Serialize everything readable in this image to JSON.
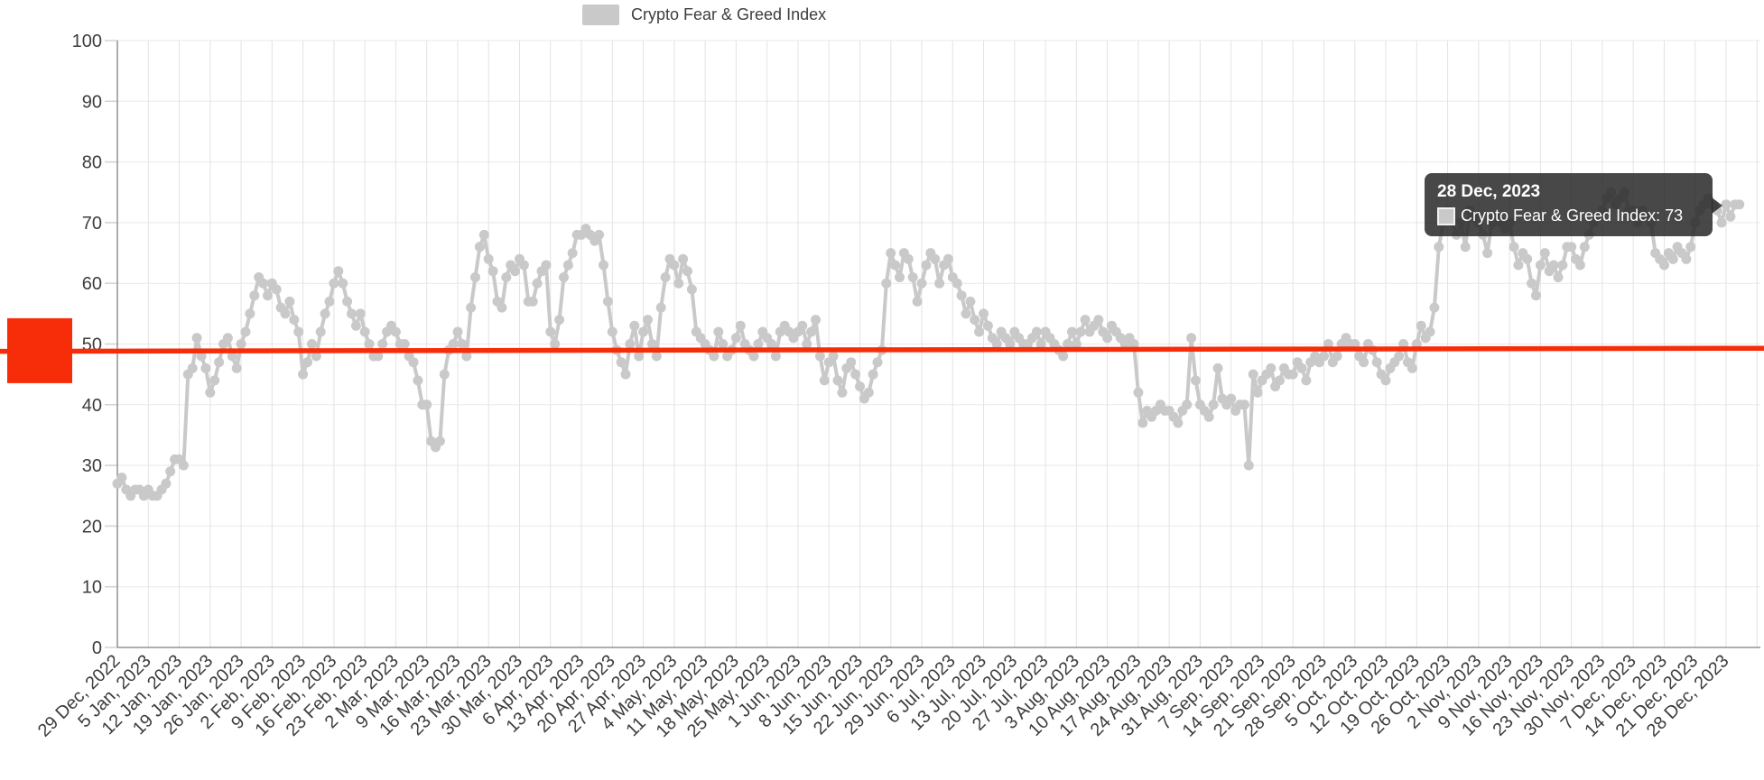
{
  "legend": {
    "label": "Crypto Fear & Greed Index",
    "swatch_color": "#c9c9c9"
  },
  "tooltip": {
    "date": "28 Dec, 2023",
    "label": "Crypto Fear & Greed Index: 73",
    "value": 73,
    "swatch_color": "#c9c9c9",
    "background": "rgba(40,40,40,0.85)"
  },
  "chart_data": {
    "type": "line",
    "title": "Crypto Fear & Greed Index",
    "series": [
      {
        "name": "Crypto Fear & Greed Index",
        "color": "#c9c9c9"
      }
    ],
    "grid": true,
    "legend_position": "top-center",
    "ylim": [
      0,
      100
    ],
    "y_ticks": [
      0,
      10,
      20,
      30,
      40,
      50,
      60,
      70,
      80,
      90,
      100
    ],
    "x_tick_interval_days": 7,
    "start_date": "29 Dec, 2022",
    "end_date": "31 Dec, 2023",
    "x_tick_labels": [
      "29 Dec, 2022",
      "5 Jan, 2023",
      "12 Jan, 2023",
      "19 Jan, 2023",
      "26 Jan, 2023",
      "2 Feb, 2023",
      "9 Feb, 2023",
      "16 Feb, 2023",
      "23 Feb, 2023",
      "2 Mar, 2023",
      "9 Mar, 2023",
      "16 Mar, 2023",
      "23 Mar, 2023",
      "30 Mar, 2023",
      "6 Apr, 2023",
      "13 Apr, 2023",
      "20 Apr, 2023",
      "27 Apr, 2023",
      "4 May, 2023",
      "11 May, 2023",
      "18 May, 2023",
      "25 May, 2023",
      "1 Jun, 2023",
      "8 Jun, 2023",
      "15 Jun, 2023",
      "22 Jun, 2023",
      "29 Jun, 2023",
      "6 Jul, 2023",
      "13 Jul, 2023",
      "20 Jul, 2023",
      "27 Jul, 2023",
      "3 Aug, 2023",
      "10 Aug, 2023",
      "17 Aug, 2023",
      "24 Aug, 2023",
      "31 Aug, 2023",
      "7 Sep, 2023",
      "14 Sep, 2023",
      "21 Sep, 2023",
      "28 Sep, 2023",
      "5 Oct, 2023",
      "12 Oct, 2023",
      "19 Oct, 2023",
      "26 Oct, 2023",
      "2 Nov, 2023",
      "9 Nov, 2023",
      "16 Nov, 2023",
      "23 Nov, 2023",
      "30 Nov, 2023",
      "7 Dec, 2023",
      "14 Dec, 2023",
      "21 Dec, 2023",
      "28 Dec, 2023"
    ],
    "values_daily": [
      27,
      28,
      26,
      25,
      26,
      26,
      25,
      26,
      25,
      25,
      26,
      27,
      29,
      31,
      31,
      30,
      45,
      46,
      51,
      48,
      46,
      42,
      44,
      47,
      50,
      51,
      48,
      46,
      50,
      52,
      55,
      58,
      61,
      60,
      58,
      60,
      59,
      56,
      55,
      57,
      54,
      52,
      45,
      47,
      50,
      48,
      52,
      55,
      57,
      60,
      62,
      60,
      57,
      55,
      53,
      55,
      52,
      50,
      48,
      48,
      50,
      52,
      53,
      52,
      50,
      50,
      48,
      47,
      44,
      40,
      40,
      34,
      33,
      34,
      45,
      49,
      50,
      52,
      50,
      48,
      56,
      61,
      66,
      68,
      64,
      62,
      57,
      56,
      61,
      63,
      62,
      64,
      63,
      57,
      57,
      60,
      62,
      63,
      52,
      50,
      54,
      61,
      63,
      65,
      68,
      68,
      69,
      68,
      67,
      68,
      63,
      57,
      52,
      49,
      47,
      45,
      50,
      53,
      48,
      52,
      54,
      50,
      48,
      56,
      61,
      64,
      63,
      60,
      64,
      62,
      59,
      52,
      51,
      50,
      49,
      48,
      52,
      50,
      48,
      49,
      51,
      53,
      50,
      49,
      48,
      50,
      52,
      51,
      50,
      48,
      52,
      53,
      52,
      51,
      52,
      53,
      50,
      52,
      54,
      48,
      44,
      47,
      48,
      44,
      42,
      46,
      47,
      45,
      43,
      41,
      42,
      45,
      47,
      49,
      60,
      65,
      63,
      61,
      65,
      64,
      61,
      57,
      60,
      63,
      65,
      64,
      60,
      63,
      64,
      61,
      60,
      58,
      55,
      57,
      54,
      52,
      55,
      53,
      51,
      50,
      52,
      51,
      50,
      52,
      51,
      50,
      50,
      51,
      52,
      50,
      52,
      51,
      50,
      49,
      48,
      50,
      52,
      50,
      52,
      54,
      52,
      53,
      54,
      52,
      51,
      53,
      52,
      51,
      50,
      51,
      50,
      42,
      37,
      39,
      38,
      39,
      40,
      39,
      39,
      38,
      37,
      39,
      40,
      51,
      44,
      40,
      39,
      38,
      40,
      46,
      41,
      40,
      41,
      39,
      40,
      40,
      30,
      45,
      42,
      44,
      45,
      46,
      43,
      44,
      46,
      45,
      45,
      47,
      46,
      44,
      47,
      48,
      47,
      48,
      50,
      47,
      48,
      50,
      51,
      50,
      50,
      48,
      47,
      50,
      49,
      47,
      45,
      44,
      46,
      47,
      48,
      50,
      47,
      46,
      50,
      53,
      51,
      52,
      56,
      66,
      70,
      72,
      70,
      68,
      70,
      66,
      72,
      71,
      70,
      68,
      65,
      70,
      71,
      70,
      69,
      70,
      66,
      63,
      65,
      64,
      60,
      58,
      63,
      65,
      62,
      63,
      61,
      63,
      66,
      66,
      64,
      63,
      66,
      68,
      70,
      71,
      72,
      74,
      75,
      73,
      74,
      75,
      72,
      72,
      70,
      72,
      71,
      70,
      65,
      64,
      63,
      65,
      64,
      66,
      65,
      64,
      66,
      70,
      72,
      73,
      74,
      73,
      72,
      70,
      73,
      71,
      73,
      73
    ],
    "highlight_point": {
      "date": "28 Dec, 2023",
      "value": 73,
      "day_index": 364
    },
    "trend_line": {
      "color": "#f72c08",
      "value_start": 48.8,
      "value_end": 49.3
    },
    "annotation_handle": {
      "color": "#f72c08",
      "value": 48.9,
      "shape": "square"
    }
  }
}
